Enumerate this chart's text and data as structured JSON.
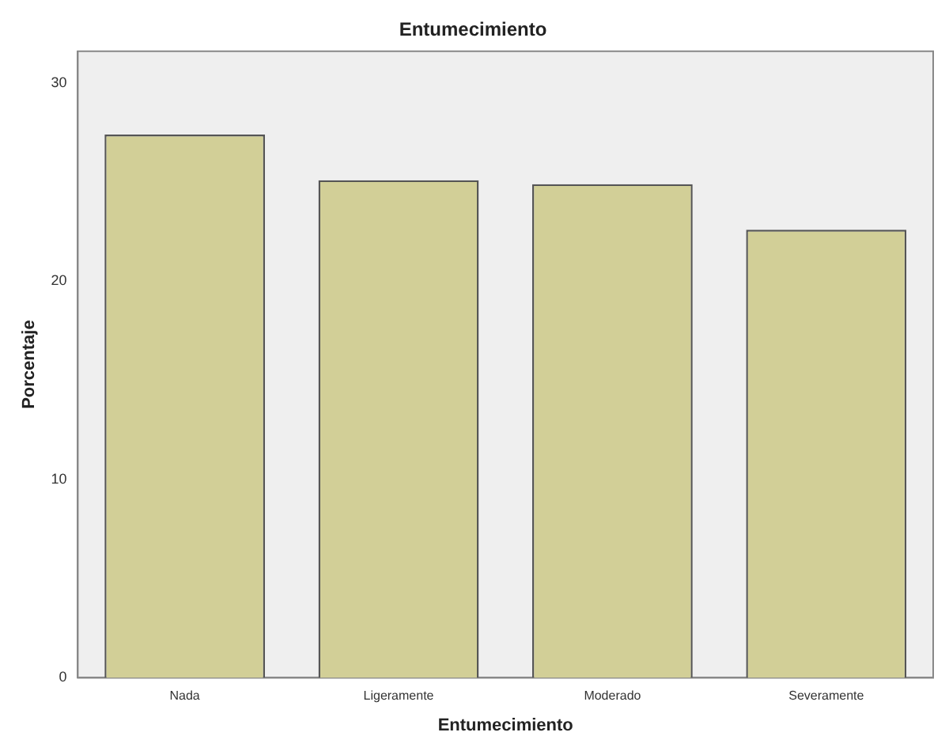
{
  "chart_data": {
    "type": "bar",
    "title": "Entumecimiento",
    "xlabel": "Entumecimiento",
    "ylabel": "Porcentaje",
    "categories": [
      "Nada",
      "Ligeramente",
      "Moderado",
      "Severamente"
    ],
    "values": [
      27.4,
      25.1,
      24.9,
      22.6
    ],
    "color": "#d2cf97",
    "ylim": [
      0,
      31.6
    ],
    "yticks": [
      0,
      10,
      20,
      30
    ],
    "grid": false,
    "legend": false
  }
}
